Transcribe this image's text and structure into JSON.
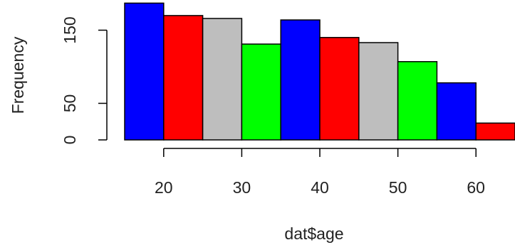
{
  "chart_data": {
    "type": "bar",
    "title": "",
    "xlabel": "dat$age",
    "ylabel": "Frequency",
    "bin_edges": [
      15,
      20,
      25,
      30,
      35,
      40,
      45,
      50,
      55,
      60,
      65
    ],
    "values": [
      187,
      170,
      166,
      131,
      164,
      140,
      133,
      107,
      78,
      23
    ],
    "bar_colors": [
      "#0000ff",
      "#ff0000",
      "#bebebe",
      "#00ff00",
      "#0000ff",
      "#ff0000",
      "#bebebe",
      "#00ff00",
      "#0000ff",
      "#ff0000"
    ],
    "xticks": [
      "20",
      "30",
      "40",
      "50",
      "60"
    ],
    "yticks": [
      "0",
      "50",
      "150"
    ],
    "grid": false,
    "legend": "none"
  }
}
